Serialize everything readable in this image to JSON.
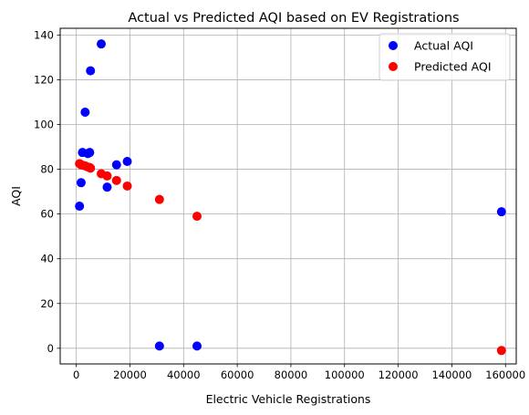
{
  "chart_data": {
    "type": "scatter",
    "title": "Actual vs Predicted AQI based on EV Registrations",
    "xlabel": "Electric Vehicle Registrations",
    "ylabel": "AQI",
    "xlim": [
      -6000,
      164000
    ],
    "ylim": [
      -7,
      143
    ],
    "xticks": [
      0,
      20000,
      40000,
      60000,
      80000,
      100000,
      120000,
      140000,
      160000
    ],
    "xtick_labels": [
      "0",
      "20000",
      "40000",
      "60000",
      "80000",
      "100000",
      "120000",
      "140000",
      "160000"
    ],
    "yticks": [
      0,
      20,
      40,
      60,
      80,
      100,
      120,
      140
    ],
    "ytick_labels": [
      "0",
      "20",
      "40",
      "60",
      "80",
      "100",
      "120",
      "140"
    ],
    "grid": true,
    "legend_position": "top-right",
    "series": [
      {
        "name": "Actual AQI",
        "color": "#0000ff",
        "points": [
          [
            1200,
            63.5
          ],
          [
            1800,
            74
          ],
          [
            2300,
            87.5
          ],
          [
            3300,
            105.5
          ],
          [
            4300,
            87
          ],
          [
            5000,
            87.5
          ],
          [
            5300,
            124
          ],
          [
            9300,
            136
          ],
          [
            11500,
            72
          ],
          [
            15000,
            82
          ],
          [
            19000,
            83.5
          ],
          [
            31000,
            1
          ],
          [
            45000,
            1
          ],
          [
            158500,
            61
          ]
        ]
      },
      {
        "name": "Predicted AQI",
        "color": "#ff0000",
        "points": [
          [
            1200,
            82.5
          ],
          [
            1800,
            82
          ],
          [
            2300,
            81.8
          ],
          [
            3300,
            81.5
          ],
          [
            4300,
            81
          ],
          [
            5000,
            80.8
          ],
          [
            5300,
            80.5
          ],
          [
            9300,
            78
          ],
          [
            11500,
            77
          ],
          [
            15000,
            75
          ],
          [
            19000,
            72.5
          ],
          [
            31000,
            66.5
          ],
          [
            45000,
            59
          ],
          [
            158500,
            -1
          ]
        ]
      }
    ]
  }
}
